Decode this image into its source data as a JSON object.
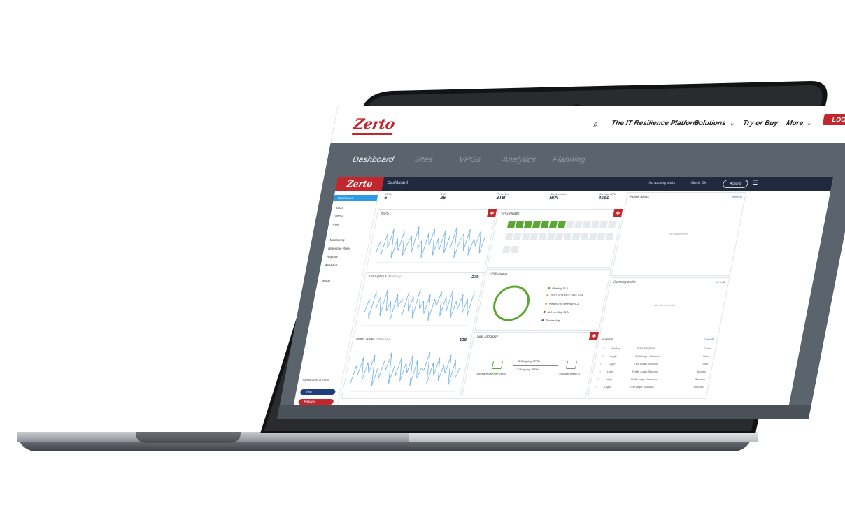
{
  "site_nav": {
    "logo": "Zerto",
    "search_icon": "search-icon",
    "items": [
      {
        "label": "The IT Resilience Platform",
        "chevron": false
      },
      {
        "label": "Solutions",
        "chevron": true
      },
      {
        "label": "Try or Buy",
        "chevron": false
      },
      {
        "label": "More",
        "chevron": true
      }
    ],
    "login_label": "LOG IN",
    "accent": "#c1272d"
  },
  "sub_tabs": [
    {
      "label": "Dashboard",
      "active": true
    },
    {
      "label": "Sites",
      "active": false
    },
    {
      "label": "VPGs",
      "active": false
    },
    {
      "label": "Analytics",
      "active": false
    },
    {
      "label": "Planning",
      "active": false
    }
  ],
  "app": {
    "logo": "Zerto",
    "breadcrumb": "Dashboard",
    "top_status": [
      "No running tasks",
      "Site is OK"
    ],
    "actions_label": "Actions",
    "sidebar": {
      "items": [
        {
          "label": "Dashboard",
          "active": true
        },
        {
          "label": "Sites",
          "active": false
        },
        {
          "label": "VPGs",
          "active": false
        },
        {
          "label": "VMs",
          "active": false
        },
        {
          "label": "Monitoring",
          "active": false
        },
        {
          "label": "Retention Rules",
          "active": false
        },
        {
          "label": "Reports",
          "active": false
        },
        {
          "label": "Analytics",
          "active": false
        },
        {
          "label": "Setup",
          "active": false
        }
      ],
      "footer_text": "Alyssa-ZMM at Zerto",
      "test_label": "Test",
      "failover_label": "Failover"
    },
    "stats": [
      {
        "label": "VPGs",
        "value": "6"
      },
      {
        "label": "VMs",
        "value": "26"
      },
      {
        "label": "Protected",
        "value": "3TB"
      },
      {
        "label": "Compression",
        "value": "N/A"
      },
      {
        "label": "Average RPO",
        "value": "4sec"
      }
    ],
    "panels": {
      "iops": {
        "title": "IOPS"
      },
      "throughput": {
        "title": "Throughput",
        "unit": "(MB/sec)",
        "value": "279"
      },
      "wan": {
        "title": "WAN Traffic",
        "unit": "(MB/sec)",
        "value": "128"
      },
      "vpg_health": {
        "title": "VPG Health",
        "green_cells": 7,
        "total_cells": 28
      },
      "vpg_status": {
        "title": "VPG Status",
        "legend": [
          {
            "label": "Meeting SLA",
            "color": "#5aa832"
          },
          {
            "label": "RPO NOT MEETING SLA",
            "color": "#e6a23c"
          },
          {
            "label": "History not Meeting SLA",
            "color": "#e6a23c"
          },
          {
            "label": "Not meeting SLA",
            "color": "#c1272d"
          },
          {
            "label": "Processing",
            "color": "#2d6fb3"
          }
        ]
      },
      "site_topology": {
        "title": "Site Topology",
        "local_site": "Alyssa-HomeSite-Zerto",
        "remote_site": "Multiple Sites (2)",
        "link_top": "3 Outgoing VPGs",
        "link_bottom": "3 Outgoing VPGs"
      },
      "active_alerts": {
        "title": "Active alerts",
        "link": "View All",
        "empty": "No active alerts"
      },
      "running_tasks": {
        "title": "Running tasks",
        "link": "View All",
        "empty": "No running tasks"
      },
      "events": {
        "title": "Events",
        "link": "View All",
        "rows": [
          {
            "type": "Backup",
            "desc": "ZVM-ZQ/QVIM",
            "status": "Done"
          },
          {
            "type": "Login",
            "desc": "ZVM Login: Success",
            "status": "Done"
          },
          {
            "type": "Login",
            "desc": "ZVM Login: Success",
            "status": "Done"
          },
          {
            "type": "Login",
            "desc": "Public Login: Success",
            "status": "Success"
          },
          {
            "type": "Login",
            "desc": "Public Login: Success",
            "status": "Success"
          },
          {
            "type": "Login",
            "desc": "ZVM Login: Success",
            "status": "Success"
          }
        ]
      }
    }
  },
  "chart_data": [
    {
      "type": "line",
      "title": "IOPS",
      "series": [
        {
          "values": [
            4,
            9,
            3,
            12,
            6,
            14,
            2,
            10,
            5,
            13,
            3,
            8,
            11,
            4,
            15,
            6,
            9,
            2,
            12,
            7,
            14,
            3,
            10,
            5,
            13,
            4,
            11,
            6,
            15,
            2,
            9,
            12,
            5,
            14,
            3,
            10,
            7,
            13,
            4,
            11
          ]
        }
      ]
    },
    {
      "type": "line",
      "title": "Throughput (MB/sec)",
      "series": [
        {
          "values": [
            5,
            11,
            3,
            14,
            7,
            12,
            4,
            15,
            6,
            10,
            2,
            13,
            8,
            11,
            4,
            14,
            6,
            12,
            3,
            15,
            7,
            10,
            5,
            13,
            2,
            11,
            8,
            14,
            4,
            12,
            6,
            15,
            3,
            10,
            7,
            13,
            5,
            11,
            4,
            14
          ]
        }
      ]
    },
    {
      "type": "line",
      "title": "WAN Traffic (MB/sec)",
      "series": [
        {
          "values": [
            3,
            10,
            6,
            13,
            4,
            11,
            7,
            14,
            2,
            9,
            5,
            12,
            8,
            15,
            3,
            10,
            6,
            13,
            4,
            11,
            7,
            14,
            2,
            12,
            5,
            9,
            8,
            15,
            3,
            11,
            6,
            13,
            4,
            10,
            7,
            14,
            2,
            12,
            5,
            9
          ]
        }
      ]
    }
  ]
}
